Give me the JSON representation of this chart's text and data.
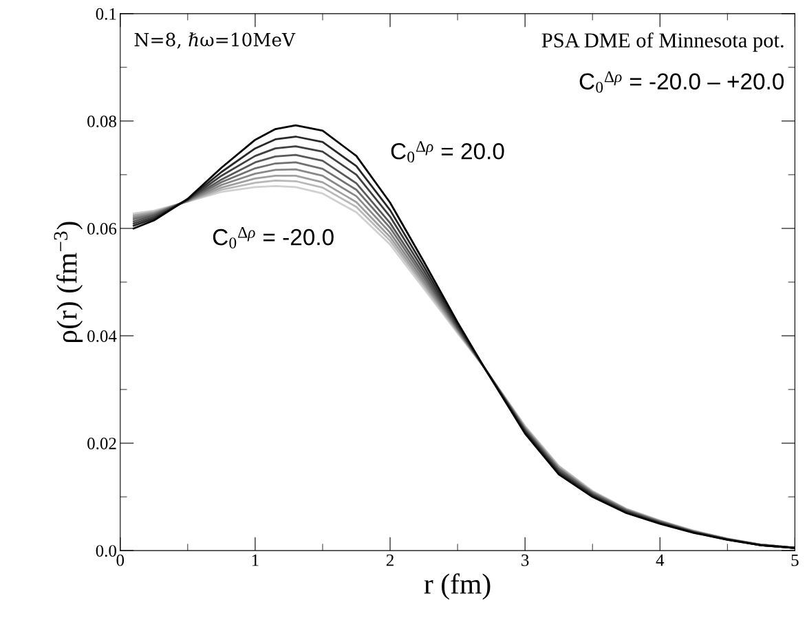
{
  "chart_data": {
    "type": "line",
    "xlabel": "r (fm)",
    "ylabel": "ρ(r) (fm$^{−3}$)",
    "x": [
      0.1,
      0.25,
      0.5,
      0.75,
      1.0,
      1.15,
      1.3,
      1.5,
      1.75,
      2.0,
      2.25,
      2.5,
      2.7,
      3.0,
      3.25,
      3.5,
      3.75,
      4.0,
      4.25,
      4.5,
      4.75,
      5.0
    ],
    "xlim": [
      0,
      5
    ],
    "xticks": [
      0,
      1,
      2,
      3,
      4,
      5
    ],
    "ylim": [
      0,
      0.1
    ],
    "yticks": [
      {
        "value": 0,
        "label": "0.0"
      },
      0.02,
      0.04,
      0.06,
      0.08,
      0.1
    ],
    "grid": false,
    "legend": false,
    "marker": "none",
    "line_style": "solid",
    "series": [
      {
        "color": "#d0d0d0",
        "values": [
          0.0628,
          0.0633,
          0.065,
          0.0668,
          0.0677,
          0.0679,
          0.0677,
          0.0665,
          0.063,
          0.057,
          0.0488,
          0.0405,
          0.034,
          0.0232,
          0.0158,
          0.0111,
          0.0078,
          0.0056,
          0.0037,
          0.0022,
          0.0011,
          0.0005
        ]
      },
      {
        "color": "#b8b8b8",
        "values": [
          0.0625,
          0.0631,
          0.065,
          0.0672,
          0.0685,
          0.0689,
          0.0688,
          0.0676,
          0.064,
          0.0577,
          0.0493,
          0.0407,
          0.034,
          0.0231,
          0.0157,
          0.011,
          0.0077,
          0.0055,
          0.0037,
          0.0022,
          0.0011,
          0.0005
        ]
      },
      {
        "color": "#a0a0a0",
        "values": [
          0.0623,
          0.063,
          0.0651,
          0.0676,
          0.0693,
          0.0698,
          0.0698,
          0.0686,
          0.0649,
          0.0584,
          0.0497,
          0.0409,
          0.034,
          0.0229,
          0.0155,
          0.0109,
          0.0077,
          0.0055,
          0.0036,
          0.0022,
          0.0011,
          0.0005
        ]
      },
      {
        "color": "#888888",
        "values": [
          0.062,
          0.0628,
          0.0651,
          0.0681,
          0.0702,
          0.0709,
          0.071,
          0.0698,
          0.066,
          0.0592,
          0.0502,
          0.0411,
          0.034,
          0.0228,
          0.0153,
          0.0108,
          0.0076,
          0.0054,
          0.0036,
          0.0021,
          0.0011,
          0.0005
        ]
      },
      {
        "color": "#707070",
        "values": [
          0.0617,
          0.0626,
          0.0652,
          0.0686,
          0.0712,
          0.0721,
          0.0723,
          0.0711,
          0.0672,
          0.0601,
          0.0508,
          0.0413,
          0.034,
          0.0226,
          0.0152,
          0.0107,
          0.0075,
          0.0054,
          0.0035,
          0.0021,
          0.0011,
          0.0005
        ]
      },
      {
        "color": "#585858",
        "values": [
          0.0613,
          0.0624,
          0.0653,
          0.0691,
          0.0723,
          0.0734,
          0.0737,
          0.0726,
          0.0684,
          0.061,
          0.0514,
          0.0415,
          0.034,
          0.0225,
          0.015,
          0.0105,
          0.0074,
          0.0053,
          0.0035,
          0.0021,
          0.001,
          0.0005
        ]
      },
      {
        "color": "#404040",
        "values": [
          0.0609,
          0.0621,
          0.0653,
          0.0698,
          0.0735,
          0.0749,
          0.0753,
          0.0743,
          0.07,
          0.0622,
          0.0521,
          0.0418,
          0.034,
          0.0223,
          0.0147,
          0.0104,
          0.0073,
          0.0052,
          0.0034,
          0.0021,
          0.001,
          0.0005
        ]
      },
      {
        "color": "#282828",
        "values": [
          0.0605,
          0.0618,
          0.0654,
          0.0705,
          0.0749,
          0.0766,
          0.0771,
          0.0761,
          0.0716,
          0.0634,
          0.0529,
          0.0421,
          0.034,
          0.0221,
          0.0145,
          0.0102,
          0.0071,
          0.0051,
          0.0034,
          0.002,
          0.001,
          0.0005
        ]
      },
      {
        "color": "#000000",
        "values": [
          0.06,
          0.0615,
          0.0655,
          0.0713,
          0.0765,
          0.0785,
          0.0792,
          0.0782,
          0.0735,
          0.0648,
          0.0538,
          0.0425,
          0.034,
          0.0218,
          0.0142,
          0.01,
          0.007,
          0.005,
          0.0033,
          0.002,
          0.001,
          0.0005
        ]
      }
    ],
    "annotations": [
      "N=8, ℏω=10MeV",
      "PSA DME of Minnesota pot.",
      "C$_{0}$$^{Δρ}$ = -20.0 – +20.0",
      "C$_{0}$$^{Δρ}$ = 20.0",
      "C$_{0}$$^{Δρ}$ = -20.0"
    ]
  }
}
